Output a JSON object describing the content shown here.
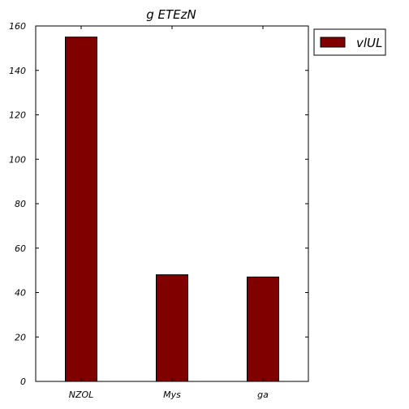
{
  "chart_data": {
    "type": "bar",
    "title": "g ETEzN",
    "xlabel": "",
    "ylabel": "",
    "categories": [
      "NZOL",
      "Mys",
      "ga"
    ],
    "series": [
      {
        "name": "vlUL",
        "values": [
          155,
          48,
          47
        ],
        "color": "#800000"
      }
    ],
    "ylim": [
      0,
      160
    ],
    "yticks": [
      0,
      20,
      40,
      60,
      80,
      100,
      120,
      140,
      160
    ],
    "grid": false,
    "legend_position": "top-right-outside"
  }
}
